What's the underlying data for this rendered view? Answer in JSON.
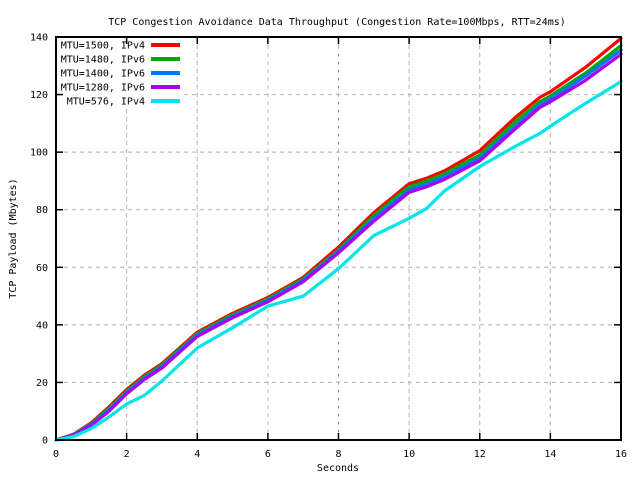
{
  "meta": {
    "background_color": "#ffffff",
    "text_color": "#000000",
    "grid_color": "#b0b0b0"
  },
  "chart_data": {
    "type": "line",
    "title": "TCP Congestion Avoidance Data Throughput (Congestion Rate=100Mbps, RTT=24ms)",
    "xlabel": "Seconds",
    "ylabel": "TCP Payload (Mbytes)",
    "xlim": [
      0,
      16
    ],
    "ylim": [
      0,
      140
    ],
    "xticks": [
      0,
      2,
      4,
      6,
      8,
      10,
      12,
      14,
      16
    ],
    "yticks": [
      0,
      20,
      40,
      60,
      80,
      100,
      120,
      140
    ],
    "grid": true,
    "legend_position": "top-left",
    "x": [
      0,
      0.5,
      1,
      1.5,
      2,
      2.5,
      3,
      4,
      5,
      6,
      7,
      8,
      9,
      10,
      10.5,
      11,
      12,
      13,
      13.7,
      14,
      15,
      16
    ],
    "series": [
      {
        "name": "MTU=1500, IPv4",
        "color": "#ff0000",
        "values": [
          0,
          2.0,
          6.0,
          11.5,
          17.5,
          22.5,
          26.5,
          37.5,
          44.0,
          49.5,
          56.5,
          67.0,
          79.0,
          89.0,
          91.0,
          93.5,
          100.5,
          112.0,
          119.0,
          121.0,
          129.5,
          139.5
        ]
      },
      {
        "name": "MTU=1480, IPv6",
        "color": "#00aa00",
        "values": [
          0,
          1.9,
          5.7,
          11.0,
          17.0,
          22.0,
          26.0,
          37.0,
          43.5,
          49.0,
          56.0,
          66.0,
          78.0,
          88.0,
          90.0,
          92.5,
          99.0,
          110.5,
          117.5,
          119.5,
          127.5,
          137.0
        ]
      },
      {
        "name": "MTU=1400, IPv6",
        "color": "#0078f0",
        "values": [
          0,
          1.8,
          5.4,
          10.5,
          16.5,
          21.5,
          25.5,
          36.5,
          43.0,
          48.5,
          55.5,
          65.5,
          77.0,
          87.0,
          89.0,
          91.5,
          98.0,
          109.0,
          116.5,
          118.5,
          126.5,
          135.5
        ]
      },
      {
        "name": "MTU=1280, IPv6",
        "color": "#aa00f0",
        "values": [
          0,
          1.7,
          5.1,
          10.0,
          16.0,
          21.0,
          25.0,
          36.0,
          42.5,
          48.0,
          55.0,
          65.0,
          76.0,
          86.0,
          88.0,
          90.5,
          97.0,
          108.0,
          115.5,
          117.5,
          125.0,
          134.0
        ]
      },
      {
        "name": "MTU=576, IPv4",
        "color": "#00e6e6",
        "values": [
          0,
          1.2,
          4.0,
          8.0,
          12.5,
          15.5,
          20.5,
          32.0,
          39.0,
          46.5,
          50.0,
          59.5,
          71.0,
          77.0,
          80.5,
          86.5,
          95.0,
          102.0,
          106.5,
          109.0,
          117.0,
          124.5
        ]
      }
    ]
  }
}
